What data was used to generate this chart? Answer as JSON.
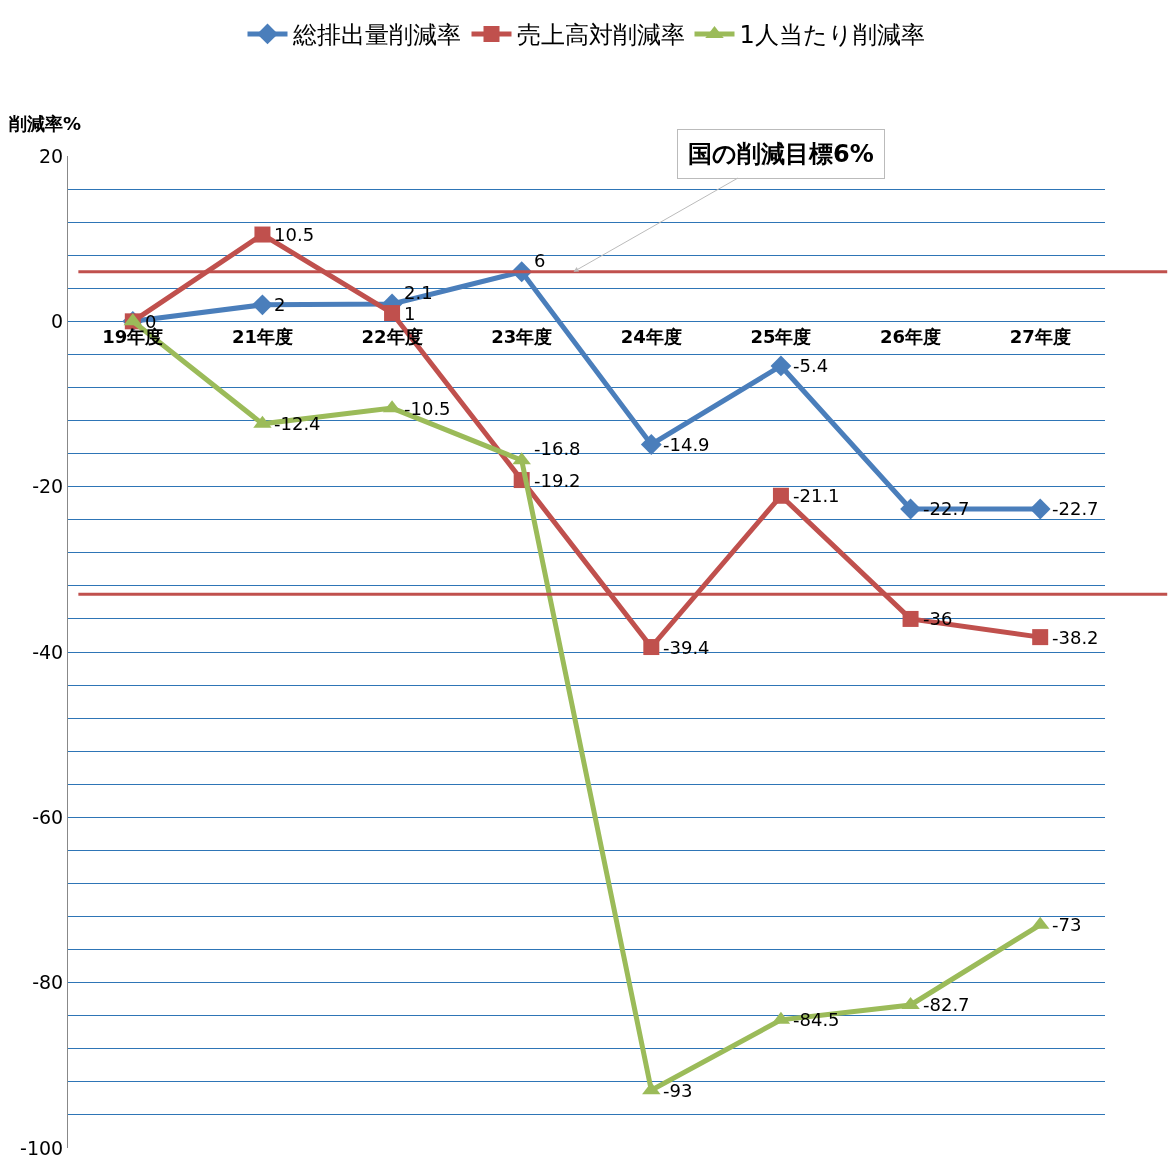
{
  "chart_data": {
    "type": "line",
    "ylabel": "削減率%",
    "categories": [
      "19年度",
      "21年度",
      "22年度",
      "23年度",
      "24年度",
      "25年度",
      "26年度",
      "27年度"
    ],
    "series": [
      {
        "name": "総排出量削減率",
        "color": "#4a7ebb",
        "marker": "diamond",
        "values": [
          0,
          2,
          2.1,
          6,
          -14.9,
          -5.4,
          -22.7,
          -22.7
        ],
        "value_labels": [
          "0",
          "2",
          "2.1",
          "6",
          "-14.9",
          "-5.4",
          "-22.7",
          "-22.7"
        ]
      },
      {
        "name": "売上高対削減率",
        "color": "#c0504d",
        "marker": "square",
        "values": [
          0,
          10.5,
          1,
          -19.2,
          -39.4,
          -21.1,
          -36,
          -38.2
        ],
        "value_labels": [
          null,
          "10.5",
          "1",
          "-19.2",
          "-39.4",
          "-21.1",
          "-36",
          "-38.2"
        ]
      },
      {
        "name": "1人当たり削減率",
        "color": "#9bbb59",
        "marker": "triangle",
        "values": [
          0,
          -12.4,
          -10.5,
          -16.8,
          -93,
          -84.5,
          -82.7,
          -73
        ],
        "value_labels": [
          null,
          "-12.4",
          "-10.5",
          "-16.8",
          "-93",
          "-84.5",
          "-82.7",
          "-73"
        ]
      }
    ],
    "ylim": [
      -100,
      20
    ],
    "yticks": [
      20,
      {
        "value": 16,
        "label": null
      },
      {
        "value": 12,
        "label": null
      },
      {
        "value": 8,
        "label": null
      },
      {
        "value": 4,
        "label": null
      },
      0,
      {
        "value": -4,
        "label": null
      },
      {
        "value": -8,
        "label": null
      },
      {
        "value": -12,
        "label": null
      },
      {
        "value": -16,
        "label": null
      },
      -20,
      {
        "value": -24,
        "label": null
      },
      {
        "value": -28,
        "label": null
      },
      {
        "value": -32,
        "label": null
      },
      {
        "value": -36,
        "label": null
      },
      -40,
      {
        "value": -44,
        "label": null
      },
      {
        "value": -48,
        "label": null
      },
      {
        "value": -52,
        "label": null
      },
      {
        "value": -56,
        "label": null
      },
      -60,
      {
        "value": -64,
        "label": null
      },
      {
        "value": -68,
        "label": null
      },
      {
        "value": -72,
        "label": null
      },
      {
        "value": -76,
        "label": null
      },
      -80,
      {
        "value": -84,
        "label": null
      },
      {
        "value": -88,
        "label": null
      },
      {
        "value": -92,
        "label": null
      },
      {
        "value": -96,
        "label": null
      },
      -100
    ],
    "ref_lines": [
      {
        "axis": "y",
        "value": 6,
        "label": "国の削減目標6%",
        "color": "#c0504d"
      },
      {
        "axis": "y",
        "value": -33,
        "color": "#c0504d"
      }
    ],
    "grid": "y",
    "legend": "top"
  }
}
